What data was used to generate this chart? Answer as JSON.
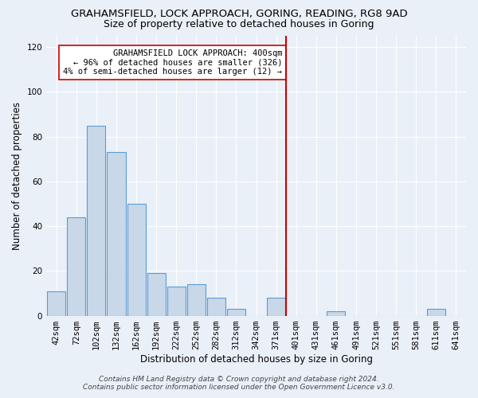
{
  "title": "GRAHAMSFIELD, LOCK APPROACH, GORING, READING, RG8 9AD",
  "subtitle": "Size of property relative to detached houses in Goring",
  "xlabel": "Distribution of detached houses by size in Goring",
  "ylabel": "Number of detached properties",
  "bar_color": "#c8d8e8",
  "bar_edge_color": "#5b9bd5",
  "background_color": "#eaf0f8",
  "grid_color": "#ffffff",
  "categories": [
    "42sqm",
    "72sqm",
    "102sqm",
    "132sqm",
    "162sqm",
    "192sqm",
    "222sqm",
    "252sqm",
    "282sqm",
    "312sqm",
    "342sqm",
    "371sqm",
    "401sqm",
    "431sqm",
    "461sqm",
    "491sqm",
    "521sqm",
    "551sqm",
    "581sqm",
    "611sqm",
    "641sqm"
  ],
  "values": [
    11,
    44,
    85,
    73,
    50,
    19,
    13,
    14,
    8,
    3,
    0,
    8,
    0,
    0,
    2,
    0,
    0,
    0,
    0,
    3,
    0
  ],
  "ylim": [
    0,
    125
  ],
  "yticks": [
    0,
    20,
    40,
    60,
    80,
    100,
    120
  ],
  "red_line_index": 12,
  "marker_label_line1": "GRAHAMSFIELD LOCK APPROACH: 400sqm",
  "marker_label_line2": "← 96% of detached houses are smaller (326)",
  "marker_label_line3": "4% of semi-detached houses are larger (12) →",
  "red_line_color": "#cc0000",
  "annotation_box_color": "#ffffff",
  "annotation_box_edge": "#cc0000",
  "footer_line1": "Contains HM Land Registry data © Crown copyright and database right 2024.",
  "footer_line2": "Contains public sector information licensed under the Open Government Licence v3.0.",
  "title_fontsize": 9.5,
  "subtitle_fontsize": 9,
  "axis_label_fontsize": 8.5,
  "tick_fontsize": 7.5,
  "annotation_fontsize": 7.5,
  "footer_fontsize": 6.5
}
